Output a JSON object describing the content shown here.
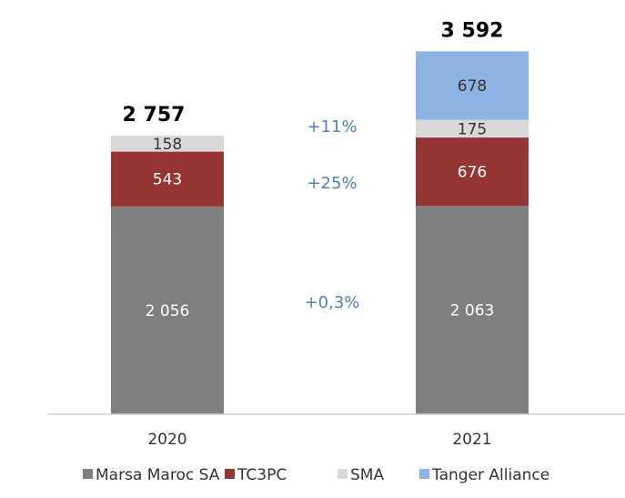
{
  "chart_data": {
    "type": "stacked_bar",
    "categories": [
      "2020",
      "2021"
    ],
    "series": [
      {
        "name": "Marsa Maroc SA",
        "color": "#7f7f7f",
        "values": [
          2056,
          2063
        ],
        "value_labels": [
          "2 056",
          "2 063"
        ]
      },
      {
        "name": "TC3PC",
        "color": "#963634",
        "values": [
          543,
          676
        ]
      },
      {
        "name": "SMA",
        "color": "#d9d9d9",
        "values": [
          158,
          175
        ]
      },
      {
        "name": "Tanger Alliance",
        "color": "#8db3e2",
        "values": [
          null,
          678
        ]
      }
    ],
    "totals": {
      "values": [
        2757,
        3592
      ],
      "value_labels": [
        "2 757",
        "3 592"
      ]
    },
    "annotations": [
      "+11%",
      "+25%",
      "+0,3%"
    ],
    "ylim": [
      0,
      4100
    ],
    "legend": "bottom"
  }
}
